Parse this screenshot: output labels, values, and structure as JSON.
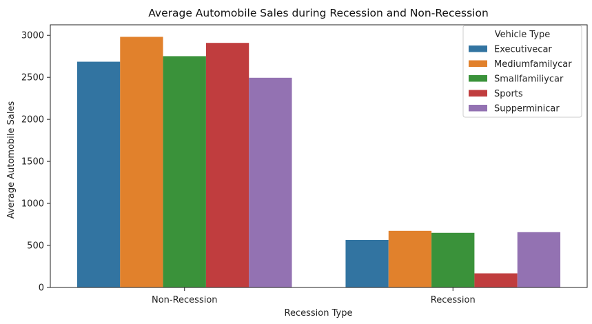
{
  "chart_data": {
    "type": "bar",
    "title": "Average Automobile Sales during Recession and Non-Recession",
    "xlabel": "Recession Type",
    "ylabel": "Average Automobile Sales",
    "categories": [
      "Non-Recession",
      "Recession"
    ],
    "series": [
      {
        "name": "Executivecar",
        "color": "#3274a1",
        "values": [
          2686,
          566
        ]
      },
      {
        "name": "Mediumfamilycar",
        "color": "#e1812c",
        "values": [
          2982,
          674
        ]
      },
      {
        "name": "Smallfamiliycar",
        "color": "#3a923a",
        "values": [
          2752,
          650
        ]
      },
      {
        "name": "Sports",
        "color": "#c03d3e",
        "values": [
          2910,
          168
        ]
      },
      {
        "name": "Supperminicar",
        "color": "#9372b2",
        "values": [
          2495,
          658
        ]
      }
    ],
    "ylim": [
      0,
      3125
    ],
    "yticks": [
      0,
      500,
      1000,
      1500,
      2000,
      2500,
      3000
    ],
    "grid": false,
    "legend": {
      "title": "Vehicle Type",
      "placement": "top-right"
    }
  }
}
